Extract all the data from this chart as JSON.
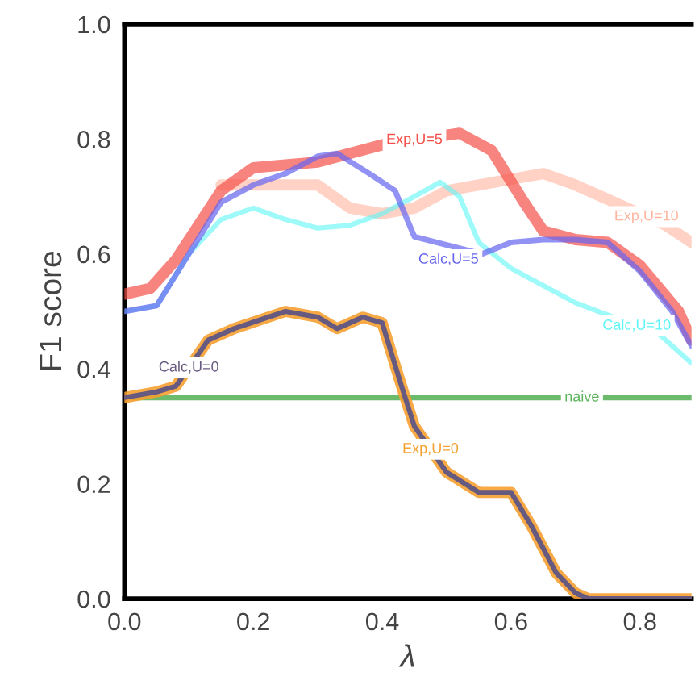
{
  "chart_data": {
    "type": "line",
    "xlabel": "λ",
    "ylabel": "F1 score",
    "xlim": [
      0,
      0.88
    ],
    "ylim": [
      0,
      1.0
    ],
    "xticks": [
      {
        "value": 0,
        "label": "0.0"
      },
      {
        "value": 0.2,
        "label": "0.2"
      },
      {
        "value": 0.4,
        "label": "0.4"
      },
      {
        "value": 0.6,
        "label": "0.6"
      },
      {
        "value": 0.8,
        "label": "0.8"
      }
    ],
    "yticks": [
      {
        "value": 0,
        "label": "0.0"
      },
      {
        "value": 0.2,
        "label": "0.2"
      },
      {
        "value": 0.4,
        "label": "0.4"
      },
      {
        "value": 0.6,
        "label": "0.6"
      },
      {
        "value": 0.8,
        "label": "0.8"
      },
      {
        "value": 1.0,
        "label": "1.0"
      }
    ],
    "grid": false,
    "legend": false,
    "line_style": "solid",
    "marker": "none",
    "series": [
      {
        "name": "naive",
        "color": "#5cb35c",
        "x": [
          0,
          0.88
        ],
        "values": [
          0.35,
          0.35
        ]
      },
      {
        "name": "Exp,U=0",
        "color": "#f5a030",
        "x": [
          0,
          0.05,
          0.08,
          0.13,
          0.17,
          0.25,
          0.3,
          0.33,
          0.37,
          0.4,
          0.43,
          0.45,
          0.5,
          0.55,
          0.6,
          0.63,
          0.67,
          0.7,
          0.72,
          0.88
        ],
        "values": [
          0.35,
          0.36,
          0.37,
          0.45,
          0.47,
          0.5,
          0.49,
          0.47,
          0.49,
          0.48,
          0.37,
          0.3,
          0.22,
          0.185,
          0.185,
          0.13,
          0.045,
          0.01,
          0.0,
          0.0
        ]
      },
      {
        "name": "Calc,U=0",
        "color": "#675a80",
        "x": [
          0,
          0.05,
          0.08,
          0.13,
          0.17,
          0.25,
          0.3,
          0.33,
          0.37,
          0.4,
          0.43,
          0.45,
          0.5,
          0.55,
          0.6,
          0.63,
          0.67,
          0.7,
          0.72,
          0.88
        ],
        "values": [
          0.35,
          0.36,
          0.37,
          0.45,
          0.47,
          0.5,
          0.49,
          0.47,
          0.49,
          0.48,
          0.37,
          0.3,
          0.22,
          0.185,
          0.185,
          0.13,
          0.045,
          0.01,
          0.0,
          0.0
        ]
      },
      {
        "name": "Exp,U=10",
        "color": "#ffb49e",
        "x": [
          0.15,
          0.2,
          0.3,
          0.35,
          0.4,
          0.45,
          0.5,
          0.6,
          0.65,
          0.7,
          0.84,
          0.88
        ],
        "values": [
          0.72,
          0.72,
          0.72,
          0.68,
          0.67,
          0.68,
          0.71,
          0.73,
          0.74,
          0.72,
          0.65,
          0.62
        ]
      },
      {
        "name": "Calc,U=10",
        "color": "#5ef5f5",
        "x": [
          0,
          0.05,
          0.1,
          0.15,
          0.2,
          0.25,
          0.3,
          0.35,
          0.4,
          0.45,
          0.49,
          0.52,
          0.55,
          0.6,
          0.65,
          0.7,
          0.83,
          0.88
        ],
        "values": [
          0.5,
          0.51,
          0.6,
          0.66,
          0.68,
          0.66,
          0.645,
          0.65,
          0.67,
          0.7,
          0.725,
          0.7,
          0.62,
          0.575,
          0.545,
          0.515,
          0.46,
          0.41
        ]
      },
      {
        "name": "Calc,U=5",
        "color": "#6464f0",
        "x": [
          0,
          0.05,
          0.1,
          0.15,
          0.2,
          0.25,
          0.3,
          0.33,
          0.38,
          0.42,
          0.45,
          0.555,
          0.6,
          0.65,
          0.7,
          0.75,
          0.8,
          0.85,
          0.88
        ],
        "values": [
          0.5,
          0.51,
          0.6,
          0.69,
          0.72,
          0.74,
          0.77,
          0.775,
          0.74,
          0.71,
          0.63,
          0.6,
          0.62,
          0.625,
          0.625,
          0.62,
          0.57,
          0.5,
          0.44
        ]
      },
      {
        "name": "Exp,U=5",
        "color": "#f5504a",
        "x": [
          0,
          0.04,
          0.08,
          0.15,
          0.2,
          0.3,
          0.4,
          0.52,
          0.57,
          0.62,
          0.65,
          0.7,
          0.75,
          0.8,
          0.86,
          0.88
        ],
        "values": [
          0.53,
          0.54,
          0.59,
          0.71,
          0.75,
          0.76,
          0.79,
          0.81,
          0.78,
          0.69,
          0.64,
          0.625,
          0.62,
          0.58,
          0.5,
          0.45
        ]
      }
    ]
  }
}
